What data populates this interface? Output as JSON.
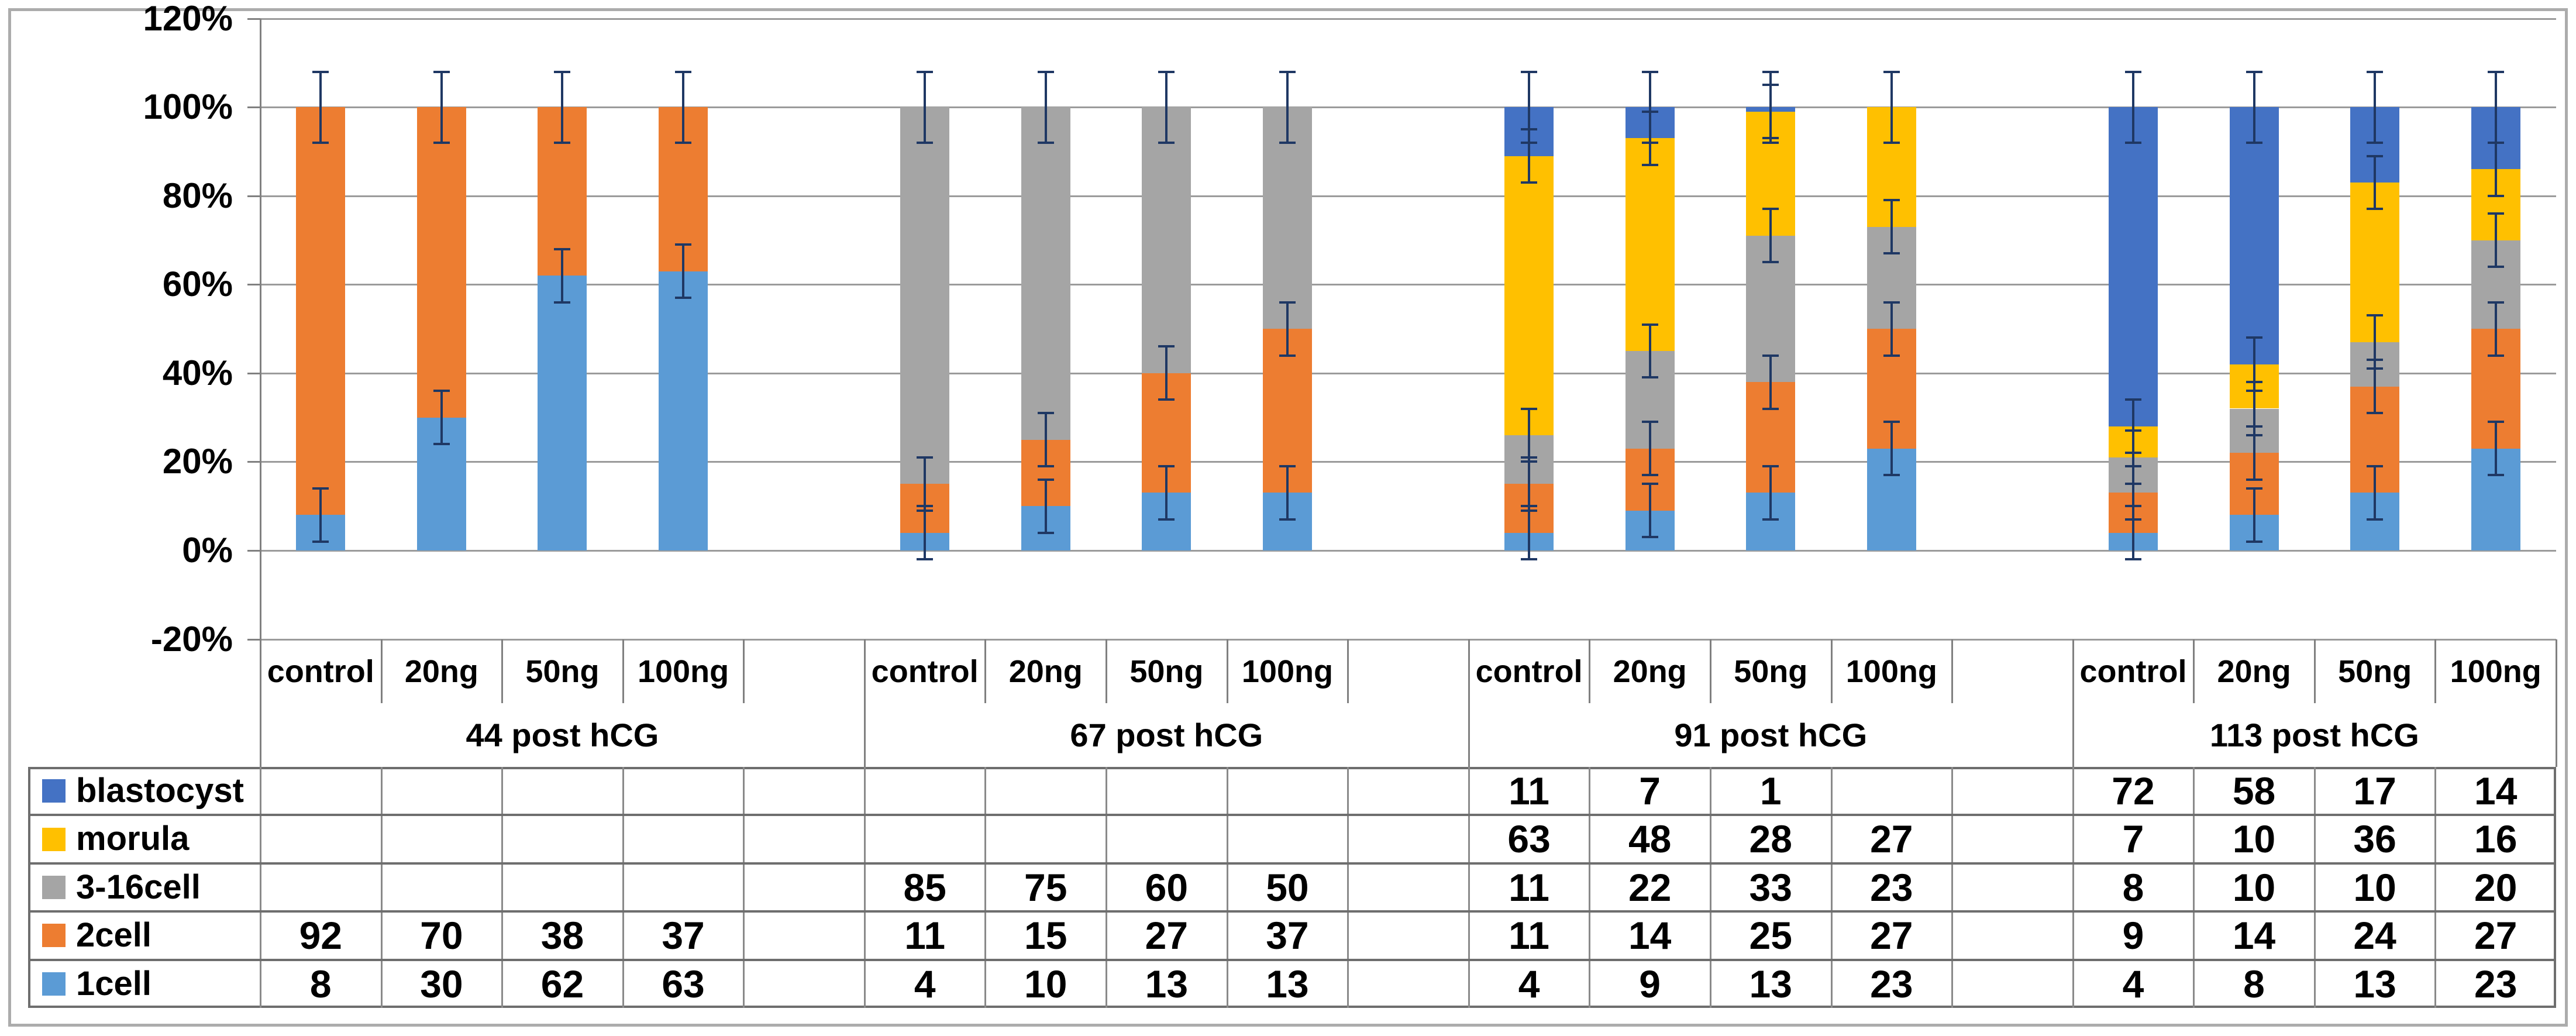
{
  "chart_data": {
    "type": "bar",
    "stacked": true,
    "title": "",
    "xlabel": "",
    "ylabel": "",
    "ylim": [
      -20,
      120
    ],
    "ytick_step": 20,
    "ytick_labels": [
      "120%",
      "100%",
      "80%",
      "60%",
      "40%",
      "20%",
      "0%",
      "-20%"
    ],
    "grid": true,
    "legend_position": "table-left-column",
    "group_labels": [
      "44 post hCG",
      "67 post hCG",
      "91 post hCG",
      "113 post hCG"
    ],
    "categories_per_group": [
      "control",
      "20ng",
      "50ng",
      "100ng"
    ],
    "stack_order_bottom_to_top": [
      "1cell",
      "2cell",
      "3-16cell",
      "morula",
      "blastocyst"
    ],
    "error_bars": {
      "interior_pct": 6,
      "top_pct": 8
    },
    "series": [
      {
        "name": "blastocyst",
        "color": "#4472C4",
        "values": [
          [
            null,
            null,
            null,
            null
          ],
          [
            null,
            null,
            null,
            null
          ],
          [
            11,
            7,
            1,
            null
          ],
          [
            72,
            58,
            17,
            14
          ]
        ]
      },
      {
        "name": "morula",
        "color": "#FFC000",
        "values": [
          [
            null,
            null,
            null,
            null
          ],
          [
            null,
            null,
            null,
            null
          ],
          [
            63,
            48,
            28,
            27
          ],
          [
            7,
            10,
            36,
            16
          ]
        ]
      },
      {
        "name": "3-16cell",
        "color": "#A5A5A5",
        "values": [
          [
            null,
            null,
            null,
            null
          ],
          [
            85,
            75,
            60,
            50
          ],
          [
            11,
            22,
            33,
            23
          ],
          [
            8,
            10,
            10,
            20
          ]
        ]
      },
      {
        "name": "2cell",
        "color": "#ED7D31",
        "values": [
          [
            92,
            70,
            38,
            37
          ],
          [
            11,
            15,
            27,
            37
          ],
          [
            11,
            14,
            25,
            27
          ],
          [
            9,
            14,
            24,
            27
          ]
        ]
      },
      {
        "name": "1cell",
        "color": "#5B9BD5",
        "values": [
          [
            8,
            30,
            62,
            63
          ],
          [
            4,
            10,
            13,
            13
          ],
          [
            4,
            9,
            13,
            23
          ],
          [
            4,
            8,
            13,
            23
          ]
        ]
      }
    ]
  }
}
